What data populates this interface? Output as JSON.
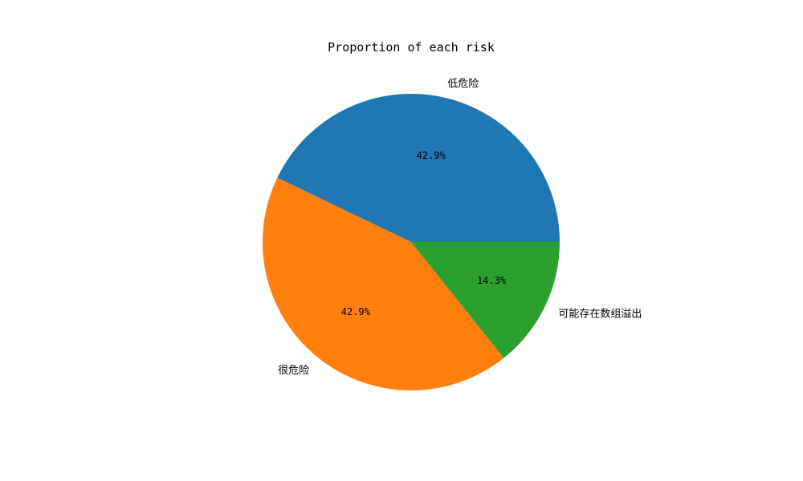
{
  "chart_data": {
    "type": "pie",
    "title": "Proportion of each risk",
    "slices": [
      {
        "label": "低危险",
        "value": 42.9,
        "pct_label": "42.9%",
        "color": "#1f77b4"
      },
      {
        "label": "很危险",
        "value": 42.9,
        "pct_label": "42.9%",
        "color": "#ff7f0e"
      },
      {
        "label": "可能存在数组溢出",
        "value": 14.3,
        "pct_label": "14.3%",
        "color": "#2ca02c"
      }
    ],
    "start_angle_deg": 0,
    "direction": "counterclockwise",
    "legend": "none"
  }
}
